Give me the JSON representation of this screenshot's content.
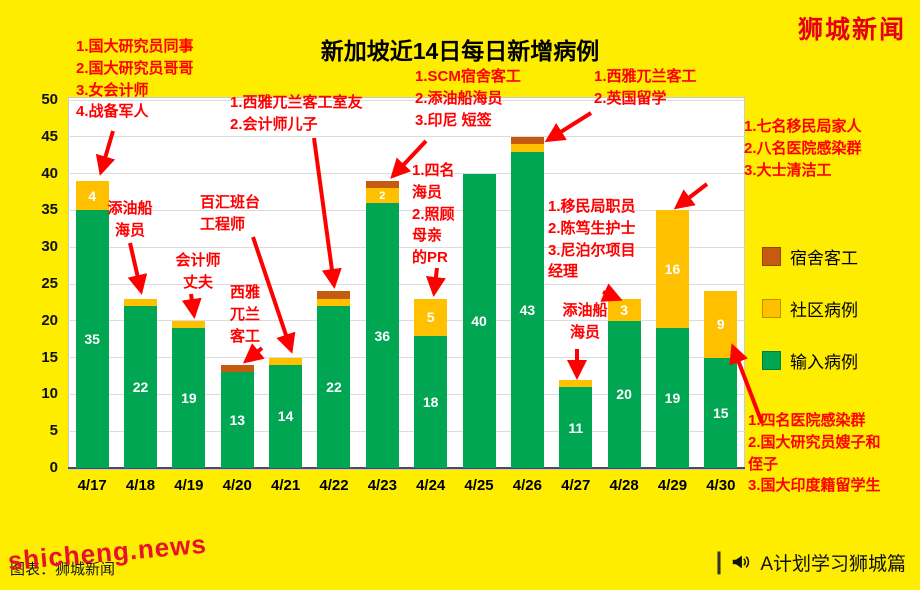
{
  "page": {
    "brand": "狮城新闻",
    "watermark": "shicheng.news",
    "watermark_caption": "图表：狮城新闻",
    "footer_divider": "|",
    "footer_brand": "A计划学习狮城篇",
    "footer_icon": "megaphone-icon"
  },
  "colors": {
    "background": "#FFED00",
    "annotation": "#FF0000",
    "brand": "#E60012",
    "watermark": "#E8112D"
  },
  "chart_data": {
    "type": "bar",
    "stacked": true,
    "title": "新加坡近14日每日新增病例",
    "categories": [
      "4/17",
      "4/18",
      "4/19",
      "4/20",
      "4/21",
      "4/22",
      "4/23",
      "4/24",
      "4/25",
      "4/26",
      "4/27",
      "4/28",
      "4/29",
      "4/30"
    ],
    "series": [
      {
        "key": "imported",
        "name": "输入病例",
        "color": "#00A651",
        "values": [
          35,
          22,
          19,
          13,
          14,
          22,
          36,
          18,
          40,
          43,
          11,
          20,
          19,
          15
        ]
      },
      {
        "key": "community",
        "name": "社区病例",
        "color": "#FFC000",
        "values": [
          4,
          1,
          1,
          0,
          1,
          1,
          2,
          5,
          0,
          1,
          1,
          3,
          16,
          9
        ]
      },
      {
        "key": "dorm",
        "name": "宿舍客工",
        "color": "#C55A11",
        "values": [
          0,
          0,
          0,
          1,
          0,
          1,
          1,
          0,
          0,
          1,
          0,
          0,
          0,
          0
        ]
      }
    ],
    "totals": [
      39,
      23,
      20,
      14,
      15,
      24,
      39,
      23,
      40,
      45,
      12,
      23,
      35,
      24
    ],
    "ylim": [
      0,
      50
    ],
    "ytick_step": 5,
    "grid": true,
    "legend_position": "right",
    "legend_order": [
      "宿舍客工",
      "社区病例",
      "输入病例"
    ],
    "label_min_value": 2
  },
  "annotations": [
    {
      "target": "4/17",
      "text": "1.国大研究员同事\n2.国大研究员哥哥\n3.女会计师\n4.战备军人"
    },
    {
      "target": "4/18",
      "text": "添油船\n海员"
    },
    {
      "target": "4/19",
      "text": "会计师\n丈夫"
    },
    {
      "target": "4/21",
      "text": "百汇班台\n工程师"
    },
    {
      "target": "4/20",
      "text": "西雅\n兀兰\n客工"
    },
    {
      "target": "4/22",
      "text": "1.西雅兀兰客工室友\n2.会计师儿子"
    },
    {
      "target": "4/23",
      "text": "1.SCM宿舍客工\n2.添油船海员\n3.印尼 短签"
    },
    {
      "target": "4/24",
      "text": "1.四名\n海员\n2.照顾\n母亲\n的PR"
    },
    {
      "target": "4/26",
      "text": "1.西雅兀兰客工\n2.英国留学"
    },
    {
      "target": "4/28",
      "text": "1.移民局职员\n2.陈笃生护士\n3.尼泊尔项目\n经理"
    },
    {
      "target": "4/27",
      "text": "添油船\n海员"
    },
    {
      "target": "4/29",
      "text": "1.七名移民局家人\n2.八名医院感染群\n3.大士清洁工"
    },
    {
      "target": "4/30",
      "text": "1.四名医院感染群\n2.国大研究员嫂子和\n侄子\n3.国大印度籍留学生"
    }
  ]
}
